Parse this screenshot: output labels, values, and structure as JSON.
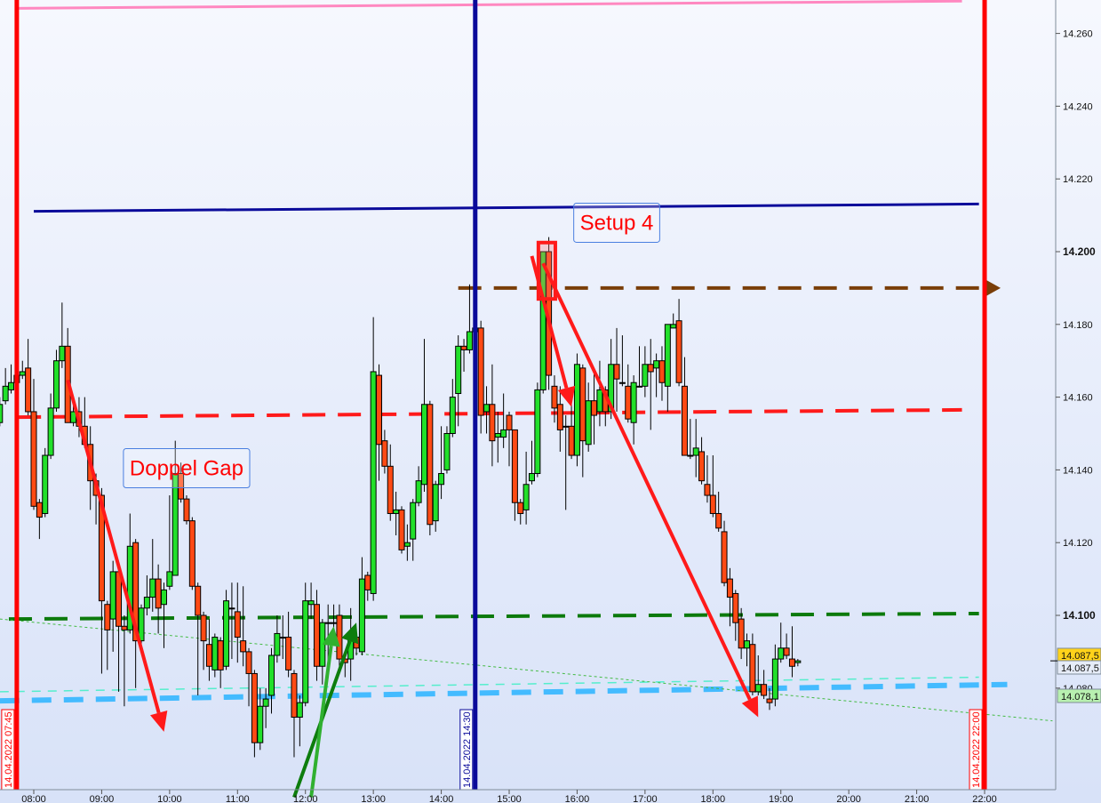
{
  "chart_data": {
    "type": "candlestick",
    "date": "14.04.2022",
    "y_axis": {
      "ticks": [
        "14.260",
        "14.240",
        "14.220",
        "14.200",
        "14.180",
        "14.160",
        "14.140",
        "14.120",
        "14.100",
        "14.080"
      ],
      "bold_ticks": [
        "14.200",
        "14.100"
      ],
      "range": [
        14.06,
        14.27
      ]
    },
    "x_axis": {
      "ticks": [
        "08:00",
        "09:00",
        "10:00",
        "11:00",
        "12:00",
        "13:00",
        "14:00",
        "15:00",
        "16:00",
        "17:00",
        "18:00",
        "19:00",
        "20:00",
        "21:00",
        "22:00"
      ],
      "range": [
        "07:30",
        "23:00"
      ]
    },
    "grid": false,
    "colors": {
      "up": "#22e02a",
      "down": "#ff4a14",
      "background_top": "#f6f8fe",
      "background_bottom": "#d8e2f8"
    },
    "price_tags": [
      {
        "label": "14.087,5",
        "value": 14.0875,
        "color": "#ffd21a"
      },
      {
        "label": "14.087,5",
        "value": 14.0875,
        "color": "#e6ecf8"
      },
      {
        "label": "14.078,1",
        "value": 14.0781,
        "color": "#b8f0b0"
      }
    ],
    "candles": [
      [
        "07:30",
        14.153,
        14.16,
        14.152,
        14.158
      ],
      [
        "07:35",
        14.159,
        14.168,
        14.158,
        14.163
      ],
      [
        "07:40",
        14.162,
        14.169,
        14.161,
        14.164
      ],
      [
        "07:45",
        14.164,
        14.168,
        14.162,
        14.166
      ],
      [
        "07:50",
        14.166,
        14.17,
        14.165,
        14.167
      ],
      [
        "07:55",
        14.168,
        14.176,
        14.155,
        14.156
      ],
      [
        "08:00",
        14.156,
        14.165,
        14.129,
        14.13
      ],
      [
        "08:05",
        14.131,
        14.132,
        14.121,
        14.127
      ],
      [
        "08:10",
        14.128,
        14.146,
        14.127,
        14.144
      ],
      [
        "08:15",
        14.144,
        14.161,
        14.143,
        14.157
      ],
      [
        "08:20",
        14.157,
        14.173,
        14.156,
        14.17
      ],
      [
        "08:25",
        14.17,
        14.186,
        14.168,
        14.174
      ],
      [
        "08:30",
        14.174,
        14.179,
        14.153,
        14.153
      ],
      [
        "08:35",
        14.153,
        14.158,
        14.152,
        14.156
      ],
      [
        "08:40",
        14.156,
        14.16,
        14.149,
        14.152
      ],
      [
        "08:45",
        14.152,
        14.16,
        14.146,
        14.147
      ],
      [
        "08:50",
        14.147,
        14.152,
        14.129,
        14.137
      ],
      [
        "08:55",
        14.137,
        14.139,
        14.125,
        14.133
      ],
      [
        "09:00",
        14.133,
        14.135,
        14.084,
        14.104
      ],
      [
        "09:05",
        14.103,
        14.104,
        14.085,
        14.096
      ],
      [
        "09:10",
        14.099,
        14.115,
        14.09,
        14.112
      ],
      [
        "09:15",
        14.112,
        14.113,
        14.079,
        14.097
      ],
      [
        "09:20",
        14.097,
        14.1,
        14.075,
        14.096
      ],
      [
        "09:25",
        14.096,
        14.128,
        14.095,
        14.119
      ],
      [
        "09:30",
        14.12,
        14.121,
        14.08,
        14.093
      ],
      [
        "09:35",
        14.093,
        14.103,
        14.092,
        14.102
      ],
      [
        "09:40",
        14.102,
        14.111,
        14.1,
        14.105
      ],
      [
        "09:45",
        14.105,
        14.121,
        14.101,
        14.11
      ],
      [
        "09:50",
        14.11,
        14.114,
        14.095,
        14.102
      ],
      [
        "09:55",
        14.103,
        14.109,
        14.091,
        14.107
      ],
      [
        "10:00",
        14.108,
        14.133,
        14.107,
        14.112
      ],
      [
        "10:05",
        14.111,
        14.148,
        14.111,
        14.139
      ],
      [
        "10:10",
        14.139,
        14.142,
        14.131,
        14.132
      ],
      [
        "10:15",
        14.132,
        14.133,
        14.125,
        14.126
      ],
      [
        "10:20",
        14.126,
        14.127,
        14.107,
        14.108
      ],
      [
        "10:25",
        14.108,
        14.109,
        14.078,
        14.1
      ],
      [
        "10:30",
        14.1,
        14.101,
        14.085,
        14.093
      ],
      [
        "10:35",
        14.092,
        14.099,
        14.082,
        14.086
      ],
      [
        "10:40",
        14.085,
        14.095,
        14.083,
        14.094
      ],
      [
        "10:45",
        14.093,
        14.094,
        14.08,
        14.085
      ],
      [
        "10:50",
        14.086,
        14.107,
        14.085,
        14.104
      ],
      [
        "10:55",
        14.102,
        14.109,
        14.088,
        14.102
      ],
      [
        "11:00",
        14.101,
        14.109,
        14.087,
        14.094
      ],
      [
        "11:05",
        14.093,
        14.108,
        14.086,
        14.09
      ],
      [
        "11:10",
        14.09,
        14.091,
        14.075,
        14.084
      ],
      [
        "11:15",
        14.084,
        14.085,
        14.061,
        14.065
      ],
      [
        "11:20",
        14.065,
        14.08,
        14.063,
        14.075
      ],
      [
        "11:25",
        14.075,
        14.08,
        14.069,
        14.077
      ],
      [
        "11:30",
        14.078,
        14.091,
        14.073,
        14.089
      ],
      [
        "11:35",
        14.089,
        14.1,
        14.087,
        14.095
      ],
      [
        "11:40",
        14.094,
        14.1,
        14.088,
        14.094
      ],
      [
        "11:45",
        14.094,
        14.101,
        14.083,
        14.085
      ],
      [
        "11:50",
        14.084,
        14.085,
        14.061,
        14.072
      ],
      [
        "11:55",
        14.072,
        14.078,
        14.064,
        14.076
      ],
      [
        "12:00",
        14.076,
        14.109,
        14.075,
        14.104
      ],
      [
        "12:05",
        14.103,
        14.109,
        14.099,
        14.104
      ],
      [
        "12:10",
        14.103,
        14.107,
        14.082,
        14.086
      ],
      [
        "12:15",
        14.086,
        14.099,
        14.081,
        14.098
      ],
      [
        "12:20",
        14.098,
        14.103,
        14.087,
        14.098
      ],
      [
        "12:25",
        14.098,
        14.103,
        14.092,
        14.098
      ],
      [
        "12:30",
        14.1,
        14.103,
        14.085,
        14.088
      ],
      [
        "12:35",
        14.088,
        14.09,
        14.083,
        14.087
      ],
      [
        "12:40",
        14.088,
        14.102,
        14.082,
        14.094
      ],
      [
        "12:45",
        14.094,
        14.095,
        14.089,
        14.091
      ],
      [
        "12:50",
        14.09,
        14.116,
        14.089,
        14.11
      ],
      [
        "12:55",
        14.111,
        14.112,
        14.104,
        14.107
      ],
      [
        "13:00",
        14.106,
        14.182,
        14.104,
        14.167
      ],
      [
        "13:05",
        14.166,
        14.169,
        14.137,
        14.147
      ],
      [
        "13:10",
        14.148,
        14.151,
        14.139,
        14.141
      ],
      [
        "13:15",
        14.141,
        14.147,
        14.126,
        14.128
      ],
      [
        "13:20",
        14.128,
        14.134,
        14.122,
        14.129
      ],
      [
        "13:25",
        14.129,
        14.13,
        14.117,
        14.118
      ],
      [
        "13:30",
        14.119,
        14.125,
        14.115,
        14.12
      ],
      [
        "13:35",
        14.121,
        14.132,
        14.115,
        14.131
      ],
      [
        "13:40",
        14.131,
        14.141,
        14.13,
        14.137
      ],
      [
        "13:45",
        14.136,
        14.176,
        14.134,
        14.158
      ],
      [
        "13:50",
        14.158,
        14.159,
        14.122,
        14.125
      ],
      [
        "13:55",
        14.126,
        14.137,
        14.123,
        14.136
      ],
      [
        "14:00",
        14.136,
        14.152,
        14.132,
        14.139
      ],
      [
        "14:05",
        14.14,
        14.152,
        14.139,
        14.15
      ],
      [
        "14:10",
        14.15,
        14.165,
        14.149,
        14.16
      ],
      [
        "14:15",
        14.161,
        14.177,
        14.152,
        14.174
      ],
      [
        "14:20",
        14.174,
        14.176,
        14.167,
        14.173
      ],
      [
        "14:25",
        14.173,
        14.191,
        14.172,
        14.178
      ],
      [
        "14:30",
        14.178,
        14.183,
        14.176,
        14.179
      ],
      [
        "14:35",
        14.179,
        14.181,
        14.15,
        14.155
      ],
      [
        "14:40",
        14.156,
        14.163,
        14.15,
        14.158
      ],
      [
        "14:45",
        14.158,
        14.169,
        14.141,
        14.148
      ],
      [
        "14:50",
        14.149,
        14.156,
        14.142,
        14.15
      ],
      [
        "14:55",
        14.149,
        14.161,
        14.146,
        14.151
      ],
      [
        "15:00",
        14.155,
        14.156,
        14.141,
        14.151
      ],
      [
        "15:05",
        14.151,
        14.151,
        14.126,
        14.131
      ],
      [
        "15:10",
        14.131,
        14.132,
        14.125,
        14.128
      ],
      [
        "15:15",
        14.129,
        14.145,
        14.125,
        14.136
      ],
      [
        "15:20",
        14.137,
        14.148,
        14.136,
        14.139
      ],
      [
        "15:25",
        14.139,
        14.164,
        14.138,
        14.162
      ],
      [
        "15:30",
        14.162,
        14.2,
        14.161,
        14.2
      ],
      [
        "15:35",
        14.2,
        14.204,
        14.162,
        14.166
      ],
      [
        "15:40",
        14.163,
        14.166,
        14.153,
        14.157
      ],
      [
        "15:45",
        14.158,
        14.163,
        14.145,
        14.151
      ],
      [
        "15:50",
        14.152,
        14.155,
        14.129,
        14.152
      ],
      [
        "15:55",
        14.152,
        14.158,
        14.143,
        14.144
      ],
      [
        "16:00",
        14.144,
        14.172,
        14.141,
        14.169
      ],
      [
        "16:05",
        14.168,
        14.169,
        14.138,
        14.148
      ],
      [
        "16:10",
        14.147,
        14.164,
        14.145,
        14.159
      ],
      [
        "16:15",
        14.159,
        14.167,
        14.147,
        14.155
      ],
      [
        "16:20",
        14.156,
        14.17,
        14.152,
        14.162
      ],
      [
        "16:25",
        14.162,
        14.163,
        14.152,
        14.156
      ],
      [
        "16:30",
        14.156,
        14.176,
        14.154,
        14.169
      ],
      [
        "16:35",
        14.169,
        14.179,
        14.156,
        14.165
      ],
      [
        "16:40",
        14.164,
        14.177,
        14.163,
        14.164
      ],
      [
        "16:45",
        14.163,
        14.169,
        14.153,
        14.154
      ],
      [
        "16:50",
        14.153,
        14.166,
        14.147,
        14.164
      ],
      [
        "16:55",
        14.163,
        14.174,
        14.163,
        14.163
      ],
      [
        "17:00",
        14.163,
        14.174,
        14.16,
        14.169
      ],
      [
        "17:05",
        14.169,
        14.176,
        14.151,
        14.167
      ],
      [
        "17:10",
        14.168,
        14.172,
        14.16,
        14.17
      ],
      [
        "17:15",
        14.17,
        14.174,
        14.159,
        14.164
      ],
      [
        "17:20",
        14.163,
        14.18,
        14.156,
        14.18
      ],
      [
        "17:25",
        14.179,
        14.183,
        14.179,
        14.18
      ],
      [
        "17:30",
        14.181,
        14.187,
        14.163,
        14.164
      ],
      [
        "17:35",
        14.163,
        14.171,
        14.144,
        14.144
      ],
      [
        "17:40",
        14.144,
        14.154,
        14.143,
        14.144
      ],
      [
        "17:45",
        14.144,
        14.154,
        14.138,
        14.146
      ],
      [
        "17:50",
        14.145,
        14.149,
        14.136,
        14.137
      ],
      [
        "17:55",
        14.136,
        14.144,
        14.131,
        14.133
      ],
      [
        "18:00",
        14.133,
        14.144,
        14.127,
        14.128
      ],
      [
        "18:05",
        14.128,
        14.134,
        14.123,
        14.124
      ],
      [
        "18:10",
        14.123,
        14.126,
        14.108,
        14.109
      ],
      [
        "18:15",
        14.11,
        14.113,
        14.097,
        14.105
      ],
      [
        "18:20",
        14.106,
        14.107,
        14.093,
        14.098
      ],
      [
        "18:25",
        14.099,
        14.102,
        14.088,
        14.091
      ],
      [
        "18:30",
        14.091,
        14.095,
        14.086,
        14.093
      ],
      [
        "18:35",
        14.092,
        14.095,
        14.078,
        14.079
      ],
      [
        "18:40",
        14.079,
        14.089,
        14.078,
        14.081
      ],
      [
        "18:45",
        14.081,
        14.085,
        14.077,
        14.078
      ],
      [
        "18:50",
        14.077,
        14.08,
        14.074,
        14.076
      ],
      [
        "18:55",
        14.077,
        14.092,
        14.075,
        14.088
      ],
      [
        "19:00",
        14.088,
        14.098,
        14.087,
        14.091
      ],
      [
        "19:05",
        14.091,
        14.095,
        14.088,
        14.089
      ],
      [
        "19:10",
        14.088,
        14.097,
        14.083,
        14.086
      ],
      [
        "19:15",
        14.087,
        14.088,
        14.086,
        14.0875
      ]
    ],
    "vertical_lines": [
      {
        "time": "07:45",
        "color": "#ff0000",
        "label": "14.04.2022 07:45"
      },
      {
        "time": "14:30",
        "color": "#0a0a9a",
        "label": "14.04.2022 14:30"
      },
      {
        "time": "22:00",
        "color": "#ff0000",
        "label": "14.04.2022 22:00"
      }
    ],
    "trend_lines": [
      {
        "name": "pink-line",
        "from": [
          "07:46",
          14.2669
        ],
        "to": [
          "21:40",
          14.2689
        ],
        "color": "#ff88c0",
        "style": "solid"
      },
      {
        "name": "navy-line",
        "from": [
          "08:00",
          14.2111
        ],
        "to": [
          "21:55",
          14.2131
        ],
        "color": "#0a0a9a",
        "style": "solid"
      },
      {
        "name": "brown-dashed-line",
        "from": [
          "14:15",
          14.19
        ],
        "to": [
          "22:00",
          14.19
        ],
        "color": "#7a3e08",
        "style": "dashed",
        "arrow": true
      },
      {
        "name": "red-dashed-line",
        "from": [
          "07:46",
          14.1545
        ],
        "to": [
          "21:40",
          14.1565
        ],
        "color": "#ff1a1a",
        "style": "dashed"
      },
      {
        "name": "green-dashed-line",
        "from": [
          "07:38",
          14.099
        ],
        "to": [
          "21:55",
          14.1005
        ],
        "color": "#0c7a0c",
        "style": "dashed"
      },
      {
        "name": "lightblue-dashed-line",
        "from": [
          "07:30",
          14.0765
        ],
        "to": [
          "22:20",
          14.081
        ],
        "color": "#44bbff",
        "style": "thick-dashed"
      },
      {
        "name": "aqua-dashed-line",
        "from": [
          "07:30",
          14.079
        ],
        "to": [
          "21:55",
          14.083
        ],
        "color": "#55eecc",
        "style": "thin-dashed"
      },
      {
        "name": "green-dotted-line",
        "from": [
          "07:30",
          14.099
        ],
        "to": [
          "23:00",
          14.071
        ],
        "color": "#44bb44",
        "style": "dotted"
      }
    ],
    "arrows": [
      {
        "name": "red-arrow-1",
        "from": [
          "08:30",
          14.1647
        ],
        "to": [
          "09:55",
          14.068
        ],
        "color": "#ff1a1a"
      },
      {
        "name": "red-arrow-2",
        "from": [
          "15:20",
          14.1988
        ],
        "to": [
          "15:55",
          14.1573
        ],
        "color": "#ff1a1a"
      },
      {
        "name": "red-arrow-3",
        "from": [
          "15:30",
          14.1968
        ],
        "to": [
          "18:40",
          14.072
        ],
        "color": "#ff1a1a"
      },
      {
        "name": "green-arrow-1",
        "from": [
          "11:50",
          14.05
        ],
        "to": [
          "12:45",
          14.098
        ],
        "color": "#0d7d0d"
      },
      {
        "name": "lightgreen-arrow",
        "from": [
          "12:05",
          14.05
        ],
        "to": [
          "12:25",
          14.097
        ],
        "color": "#30b030"
      }
    ],
    "highlight_box": {
      "from": [
        "15:25",
        14.2025
      ],
      "to": [
        "15:40",
        14.187
      ],
      "color": "#ff1a1a"
    },
    "annotations": [
      {
        "text": "Doppel Gap",
        "time": "10:15",
        "price": 14.1385
      },
      {
        "text": "Setup 4",
        "time": "16:35",
        "price": 14.206
      }
    ]
  }
}
